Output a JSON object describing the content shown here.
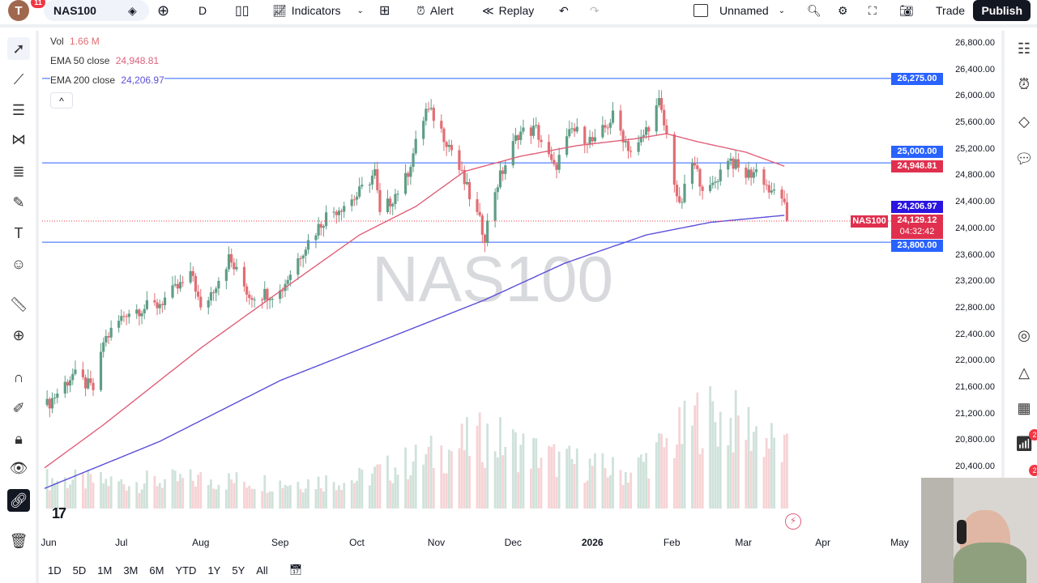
{
  "toolbar": {
    "avatar_letter": "T",
    "notifications": "11",
    "symbol": "NAS100",
    "interval": "D",
    "indicators": "Indicators",
    "alert": "Alert",
    "replay": "Replay",
    "layout_name": "Unnamed",
    "trade": "Trade",
    "publish": "Publish"
  },
  "legend": {
    "vol_label": "Vol",
    "vol_value": "1.66 M",
    "ema50_label": "EMA 50 close",
    "ema50_value": "24,948.81",
    "ema200_label": "EMA 200 close",
    "ema200_value": "24,206.97"
  },
  "watermark": "NAS100",
  "price_axis": [
    "26,800.00",
    "26,400.00",
    "26,000.00",
    "25,600.00",
    "25,200.00",
    "24,800.00",
    "24,400.00",
    "24,000.00",
    "23,600.00",
    "23,200.00",
    "22,800.00",
    "22,400.00",
    "22,000.00",
    "21,600.00",
    "21,200.00",
    "20,800.00",
    "20,400.00"
  ],
  "price_tags": {
    "line1": "26,275.00",
    "line2": "25,000.00",
    "ema50": "24,948.81",
    "ema200": "24,206.97",
    "symbol": "NAS100",
    "last": "24,129.12",
    "countdown": "04:32:42",
    "line3": "23,800.00"
  },
  "time_axis": [
    {
      "label": "Jun",
      "date": "2025-06-01"
    },
    {
      "label": "Jul",
      "date": "2025-07-01"
    },
    {
      "label": "Aug",
      "date": "2025-08-01"
    },
    {
      "label": "Sep",
      "date": "2025-09-01"
    },
    {
      "label": "Oct",
      "date": "2025-10-01"
    },
    {
      "label": "Nov",
      "date": "2025-11-01"
    },
    {
      "label": "Dec",
      "date": "2025-12-01"
    },
    {
      "label": "2026",
      "date": "2026-01-01"
    },
    {
      "label": "Feb",
      "date": "2026-02-01"
    },
    {
      "label": "Mar",
      "date": "2026-03-01"
    },
    {
      "label": "Apr",
      "date": "2026-04-01"
    },
    {
      "label": "May",
      "date": "2026-05-01"
    }
  ],
  "ranges": [
    "1D",
    "5D",
    "1M",
    "3M",
    "6M",
    "YTD",
    "1Y",
    "5Y",
    "All"
  ],
  "right_badges": {
    "b1": "2",
    "b2": "2"
  },
  "colors": {
    "up": "#5f9e86",
    "down": "#e26d74",
    "ema50": "#e0607a",
    "ema200": "#5b4fd8",
    "hline": "#2962ff",
    "last": "#f23645"
  },
  "chart_data": {
    "type": "candlestick",
    "symbol": "NAS100",
    "interval": "D",
    "ylim": [
      20300,
      26900
    ],
    "hlines": [
      26275,
      25000,
      23800
    ],
    "last_price": 24129.12,
    "close_path": [
      [
        "2025-06-02",
        21340
      ],
      [
        "2025-06-12",
        21800
      ],
      [
        "2025-06-21",
        21550
      ],
      [
        "2025-06-24",
        22300
      ],
      [
        "2025-07-03",
        22750
      ],
      [
        "2025-07-15",
        22850
      ],
      [
        "2025-07-29",
        23300
      ],
      [
        "2025-08-01",
        22750
      ],
      [
        "2025-08-12",
        23550
      ],
      [
        "2025-08-20",
        23000
      ],
      [
        "2025-09-01",
        23050
      ],
      [
        "2025-09-10",
        23700
      ],
      [
        "2025-09-19",
        24200
      ],
      [
        "2025-10-01",
        24500
      ],
      [
        "2025-10-08",
        24850
      ],
      [
        "2025-10-10",
        24200
      ],
      [
        "2025-10-20",
        24750
      ],
      [
        "2025-10-28",
        25800
      ],
      [
        "2025-10-31",
        25700
      ],
      [
        "2025-11-07",
        25200
      ],
      [
        "2025-11-13",
        24600
      ],
      [
        "2025-11-20",
        23900
      ],
      [
        "2025-11-24",
        24600
      ],
      [
        "2025-12-03",
        25450
      ],
      [
        "2025-12-10",
        25500
      ],
      [
        "2025-12-17",
        24900
      ],
      [
        "2025-12-24",
        25500
      ],
      [
        "2026-01-02",
        25300
      ],
      [
        "2026-01-09",
        25700
      ],
      [
        "2026-01-17",
        25100
      ],
      [
        "2026-01-27",
        25900
      ],
      [
        "2026-01-30",
        25400
      ],
      [
        "2026-02-04",
        24300
      ],
      [
        "2026-02-09",
        25000
      ],
      [
        "2026-02-15",
        24500
      ],
      [
        "2026-02-23",
        25100
      ],
      [
        "2026-03-01",
        24800
      ],
      [
        "2026-03-07",
        24900
      ],
      [
        "2026-03-12",
        24500
      ],
      [
        "2026-03-15",
        24700
      ],
      [
        "2026-03-18",
        24129
      ]
    ],
    "ema50_path": [
      [
        "2025-06-01",
        20390
      ],
      [
        "2025-06-24",
        21040
      ],
      [
        "2025-08-01",
        22200
      ],
      [
        "2025-09-01",
        23060
      ],
      [
        "2025-10-02",
        23910
      ],
      [
        "2025-10-24",
        24340
      ],
      [
        "2025-11-12",
        24870
      ],
      [
        "2025-12-04",
        25100
      ],
      [
        "2025-12-26",
        25260
      ],
      [
        "2026-01-17",
        25360
      ],
      [
        "2026-01-30",
        25440
      ],
      [
        "2026-02-11",
        25320
      ],
      [
        "2026-03-02",
        25160
      ],
      [
        "2026-03-17",
        24949
      ]
    ],
    "ema200_path": [
      [
        "2025-06-01",
        20080
      ],
      [
        "2025-07-16",
        20790
      ],
      [
        "2025-09-01",
        21710
      ],
      [
        "2025-10-19",
        22440
      ],
      [
        "2025-11-20",
        22930
      ],
      [
        "2025-12-21",
        23480
      ],
      [
        "2026-01-22",
        23910
      ],
      [
        "2026-02-16",
        24100
      ],
      [
        "2026-03-17",
        24207
      ]
    ],
    "volume_path_m": [
      [
        "2025-06-02",
        0.9
      ],
      [
        "2025-07-01",
        0.8
      ],
      [
        "2025-08-01",
        0.9
      ],
      [
        "2025-09-01",
        0.8
      ],
      [
        "2025-10-01",
        0.9
      ],
      [
        "2025-11-21",
        2.2
      ],
      [
        "2025-12-18",
        1.5
      ],
      [
        "2026-01-15",
        1.1
      ],
      [
        "2026-02-05",
        2.3
      ],
      [
        "2026-02-12",
        2.9
      ],
      [
        "2026-03-04",
        2.5
      ],
      [
        "2026-03-18",
        1.66
      ]
    ]
  }
}
